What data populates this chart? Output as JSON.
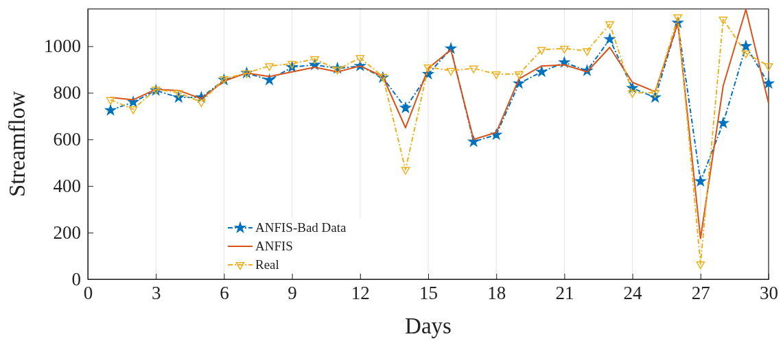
{
  "chart_data": {
    "type": "line",
    "xlabel": "Days",
    "ylabel": "Streamflow",
    "x": [
      1,
      2,
      3,
      4,
      5,
      6,
      7,
      8,
      9,
      10,
      11,
      12,
      13,
      14,
      15,
      16,
      17,
      18,
      19,
      20,
      21,
      22,
      23,
      24,
      25,
      26,
      27,
      28,
      29,
      30
    ],
    "xlim": [
      0,
      30
    ],
    "xticks": [
      0,
      3,
      6,
      9,
      12,
      15,
      18,
      21,
      24,
      27,
      30
    ],
    "ylim": [
      0,
      1160
    ],
    "yticks": [
      0,
      200,
      400,
      600,
      800,
      1000
    ],
    "grid": "x",
    "legend": "bottom left",
    "series": [
      {
        "name": "ANFIS-Bad Data",
        "color": "#0072bd",
        "marker": "star",
        "line_style": "dashed",
        "values": [
          725,
          760,
          810,
          780,
          780,
          855,
          885,
          855,
          910,
          920,
          905,
          915,
          865,
          735,
          880,
          990,
          590,
          620,
          840,
          890,
          930,
          895,
          1030,
          820,
          780,
          1100,
          420,
          670,
          1000,
          840
        ]
      },
      {
        "name": "ANFIS",
        "color": "#d95319",
        "marker": "none",
        "line_style": "solid",
        "values": [
          780,
          770,
          815,
          810,
          775,
          850,
          885,
          870,
          890,
          910,
          890,
          915,
          870,
          650,
          905,
          985,
          600,
          630,
          860,
          915,
          920,
          890,
          995,
          845,
          805,
          1100,
          175,
          830,
          1158,
          755
        ]
      },
      {
        "name": "Real",
        "color": "#edb120",
        "marker": "triangle",
        "line_style": "dashed",
        "values": [
          770,
          730,
          815,
          800,
          760,
          860,
          885,
          915,
          925,
          945,
          900,
          950,
          870,
          470,
          910,
          895,
          905,
          880,
          880,
          985,
          990,
          980,
          1095,
          800,
          800,
          1125,
          65,
          1115,
          970,
          915
        ]
      }
    ]
  }
}
